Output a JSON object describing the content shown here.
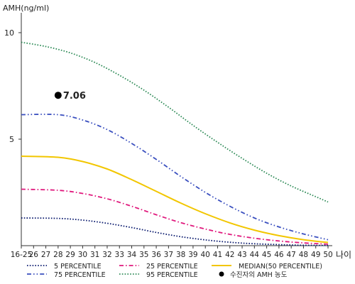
{
  "chart_data": {
    "type": "line",
    "ylabel": "AMH(ng/ml)",
    "xlabel": "나이",
    "x_ticks": [
      "16-25",
      "26",
      "27",
      "28",
      "29",
      "30",
      "31",
      "32",
      "33",
      "34",
      "35",
      "36",
      "37",
      "38",
      "39",
      "40",
      "41",
      "42",
      "43",
      "44",
      "45",
      "46",
      "47",
      "48",
      "49",
      "50"
    ],
    "x_range": [
      25,
      50
    ],
    "y_ticks": [
      5,
      10
    ],
    "ylim": [
      0,
      10.8
    ],
    "grid": false,
    "legend_position": "bottom",
    "series": [
      {
        "name": "5 PERCENTILE",
        "color": "#0a1a6e",
        "style": "dotted",
        "points": [
          [
            25,
            1.3
          ],
          [
            28,
            1.28
          ],
          [
            30,
            1.2
          ],
          [
            32,
            1.05
          ],
          [
            34,
            0.85
          ],
          [
            36,
            0.62
          ],
          [
            38,
            0.42
          ],
          [
            40,
            0.27
          ],
          [
            42,
            0.16
          ],
          [
            44,
            0.09
          ],
          [
            46,
            0.05
          ],
          [
            48,
            0.02
          ],
          [
            50,
            0.01
          ]
        ]
      },
      {
        "name": "25 PERCENTILE",
        "color": "#e0197d",
        "style": "dashdot",
        "points": [
          [
            25,
            2.65
          ],
          [
            28,
            2.6
          ],
          [
            30,
            2.45
          ],
          [
            32,
            2.2
          ],
          [
            34,
            1.85
          ],
          [
            36,
            1.45
          ],
          [
            38,
            1.08
          ],
          [
            40,
            0.78
          ],
          [
            42,
            0.53
          ],
          [
            44,
            0.35
          ],
          [
            46,
            0.22
          ],
          [
            48,
            0.13
          ],
          [
            50,
            0.07
          ]
        ]
      },
      {
        "name": "MEDIAN(50 PERCENTILE)",
        "color": "#f2c600",
        "style": "solid",
        "points": [
          [
            25,
            4.2
          ],
          [
            28,
            4.15
          ],
          [
            30,
            3.95
          ],
          [
            32,
            3.6
          ],
          [
            34,
            3.1
          ],
          [
            36,
            2.55
          ],
          [
            38,
            2.0
          ],
          [
            40,
            1.5
          ],
          [
            42,
            1.07
          ],
          [
            44,
            0.73
          ],
          [
            46,
            0.47
          ],
          [
            48,
            0.28
          ],
          [
            50,
            0.15
          ]
        ]
      },
      {
        "name": "75 PERCENTILE",
        "color": "#3a4fbf",
        "style": "dashdotdot",
        "points": [
          [
            25,
            6.15
          ],
          [
            28,
            6.15
          ],
          [
            30,
            5.9
          ],
          [
            32,
            5.45
          ],
          [
            34,
            4.8
          ],
          [
            36,
            4.05
          ],
          [
            38,
            3.25
          ],
          [
            40,
            2.5
          ],
          [
            42,
            1.85
          ],
          [
            44,
            1.3
          ],
          [
            46,
            0.88
          ],
          [
            48,
            0.55
          ],
          [
            50,
            0.28
          ]
        ]
      },
      {
        "name": "95 PERCENTILE",
        "color": "#2e8b57",
        "style": "dotted",
        "points": [
          [
            25,
            9.55
          ],
          [
            27,
            9.35
          ],
          [
            29,
            9.05
          ],
          [
            31,
            8.6
          ],
          [
            33,
            8.0
          ],
          [
            35,
            7.3
          ],
          [
            37,
            6.5
          ],
          [
            39,
            5.65
          ],
          [
            41,
            4.85
          ],
          [
            43,
            4.1
          ],
          [
            45,
            3.4
          ],
          [
            47,
            2.8
          ],
          [
            49,
            2.3
          ],
          [
            50,
            2.05
          ]
        ]
      }
    ],
    "marker": {
      "name": "수진자의 AMH 농도",
      "x": 28,
      "y": 7.06,
      "label": "7.06"
    },
    "legend": [
      {
        "label": "5 PERCENTILE",
        "color": "#0a1a6e",
        "style": "dotted"
      },
      {
        "label": "25 PERCENTILE",
        "color": "#e0197d",
        "style": "dashdot"
      },
      {
        "label": "MEDIAN(50 PERCENTILE)",
        "color": "#f2c600",
        "style": "solid"
      },
      {
        "label": "75 PERCENTILE",
        "color": "#3a4fbf",
        "style": "dashdotdot"
      },
      {
        "label": "95 PERCENTILE",
        "color": "#2e8b57",
        "style": "dotted"
      },
      {
        "label": "수진자의 AMH 농도",
        "color": "#000000",
        "style": "dot"
      }
    ]
  }
}
